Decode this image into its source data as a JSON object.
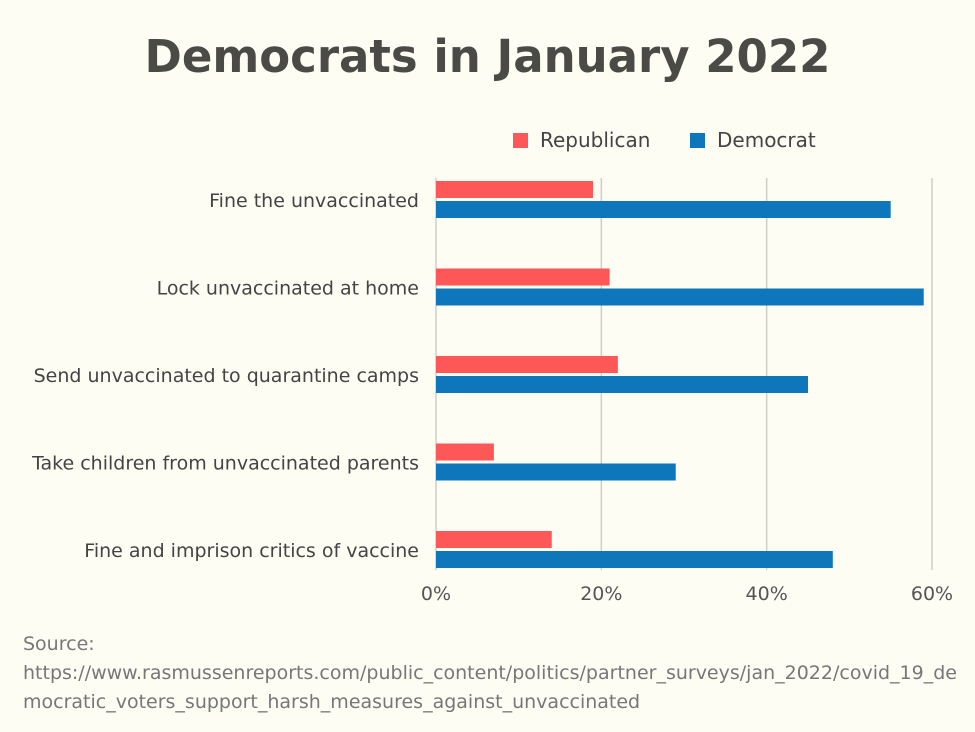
{
  "chart_data": {
    "type": "bar",
    "orientation": "horizontal",
    "title": "Democrats in January 2022",
    "categories": [
      "Fine the unvaccinated",
      "Lock unvaccinated at home",
      "Send unvaccinated to quarantine camps",
      "Take children from unvaccinated parents",
      "Fine and imprison critics of vaccine"
    ],
    "series": [
      {
        "name": "Republican",
        "color": "#fd5758",
        "values": [
          19,
          21,
          22,
          7,
          14
        ]
      },
      {
        "name": "Democrat",
        "color": "#0e76bb",
        "values": [
          55,
          59,
          45,
          29,
          48
        ]
      }
    ],
    "xlim": [
      0,
      60
    ],
    "xticks": [
      "0%",
      "20%",
      "40%",
      "60%"
    ],
    "xtick_values": [
      0,
      20,
      40,
      60
    ],
    "grid": true,
    "legend": "top-right"
  },
  "source_label": "Source:",
  "source_url": "https://www.rasmussenreports.com/public_content/politics/partner_surveys/jan_2022/covid_19_democratic_voters_support_harsh_measures_against_unvaccinated"
}
